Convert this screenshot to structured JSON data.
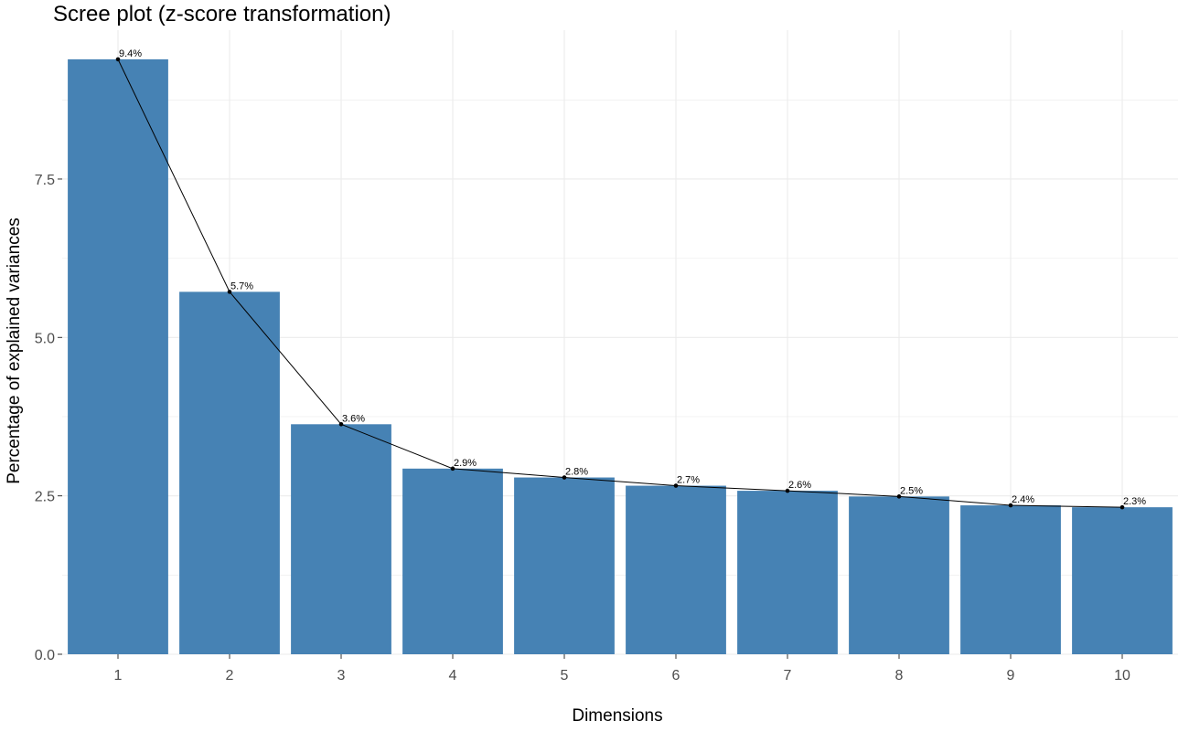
{
  "chart_data": {
    "type": "bar",
    "title": "Scree plot (z-score transformation)",
    "xlabel": "Dimensions",
    "ylabel": "Percentage of explained variances",
    "categories": [
      "1",
      "2",
      "3",
      "4",
      "5",
      "6",
      "7",
      "8",
      "9",
      "10"
    ],
    "values": [
      9.4,
      5.7,
      3.6,
      2.9,
      2.8,
      2.7,
      2.6,
      2.5,
      2.4,
      2.3
    ],
    "plotted_values": [
      9.39,
      5.72,
      3.63,
      2.93,
      2.79,
      2.66,
      2.58,
      2.49,
      2.35,
      2.32
    ],
    "data_labels": [
      "9.4%",
      "5.7%",
      "3.6%",
      "2.9%",
      "2.8%",
      "2.7%",
      "2.6%",
      "2.5%",
      "2.4%",
      "2.3%"
    ],
    "ylim": [
      0,
      9.85
    ],
    "y_ticks": [
      0,
      2.5,
      5,
      7.5
    ],
    "y_tick_labels": [
      "0.0",
      "2.5",
      "5.0",
      "7.5"
    ],
    "grid": true,
    "bar_color": "#4682b4",
    "line_color": "#000000",
    "grid_color": "#ebebeb"
  }
}
